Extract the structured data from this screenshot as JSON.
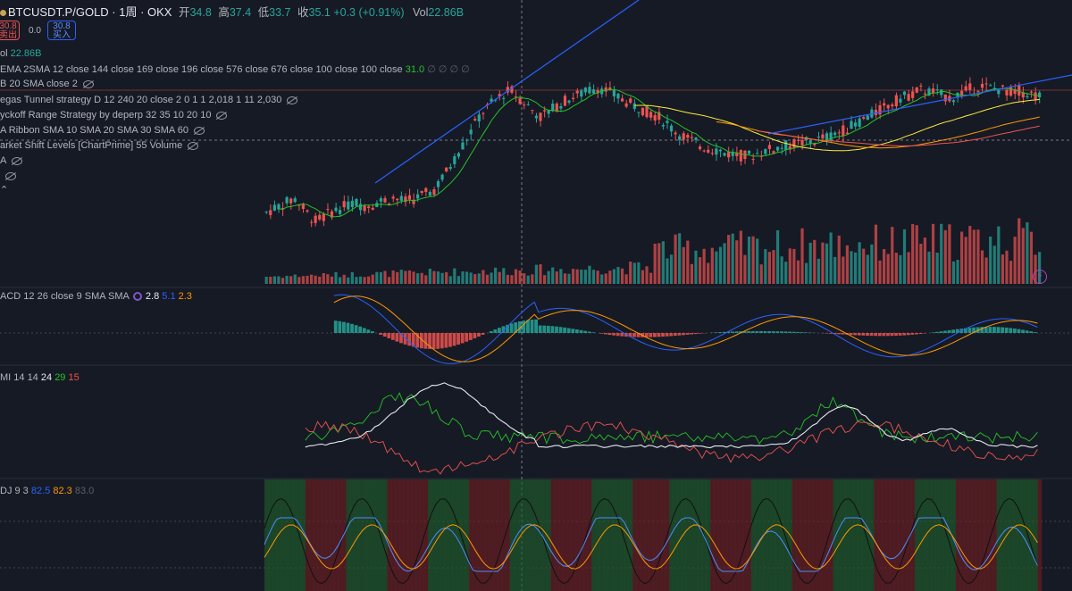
{
  "header": {
    "symbol": "BTCUSDT.P/GOLD · 1周 · OKX",
    "open_label": "开",
    "open": "34.8",
    "high_label": "高",
    "high": "37.4",
    "low_label": "低",
    "low": "33.7",
    "close_label": "收",
    "close": "35.1 +0.3 (+0.91%)",
    "vol_label": "Vol",
    "vol": "22.86B"
  },
  "trade": {
    "sell_price": "30.8",
    "sell_label": "卖出",
    "spread": "0.0",
    "buy_price": "30.8",
    "buy_label": "买入"
  },
  "indicators": {
    "vol_label": "ol",
    "vol_value": "22.86B",
    "ema": "EMA 2SMA 12 close 144 close 169 close 196 close 576 close 676 close 100 close 100 close",
    "ema_value": "31.0",
    "ema_rest": "∅ ∅ ∅ ∅",
    "bb": "B 20 SMA close 2",
    "vegas": "egas Tunnel strategy D 12 240 20 close 2 0 1 1 2,018 1 11 2,030",
    "wyckoff": "yckoff Range Strategy by deperp 32 35 10 20 10",
    "ribbon": "A Ribbon SMA 10 SMA 20 SMA 30 SMA 60",
    "market_shift": "arket Shift Levels [ChartPrime] 55 Volume",
    "ind_a": "A",
    "ind_blank": ""
  },
  "macd": {
    "label": "ACD 12 26 close 9 SMA SMA",
    "v1": "2.8",
    "v2": "5.1",
    "v3": "2.3"
  },
  "dmi": {
    "label": "MI 14 14",
    "v1": "24",
    "v2": "29",
    "v3": "15"
  },
  "kdj": {
    "label": "DJ 9 3",
    "v1": "82.5",
    "v2": "82.3",
    "v3": "83.0"
  },
  "colors": {
    "up": "#26a69a",
    "down": "#ef5350",
    "blue": "#2962ff",
    "orange": "#ff9800",
    "bg": "#161a25"
  },
  "chart_data": {
    "type": "line",
    "candles": [
      32.1,
      32.8,
      33.4,
      34.0,
      32.2,
      30.9,
      31.6,
      32.4,
      32.9,
      33.5,
      33.0,
      33.3,
      33.8,
      34.1,
      33.6,
      33.9,
      34.5,
      35.0,
      36.8,
      38.9,
      41.2,
      43.5,
      45.8,
      47.0,
      48.2,
      48.9,
      47.6,
      46.4,
      45.2,
      46.1,
      47.0,
      47.8,
      48.3,
      48.9,
      49.3,
      48.6,
      47.9,
      47.1,
      46.5,
      45.9,
      45.3,
      44.2,
      43.0,
      42.3,
      41.5,
      41.0,
      40.7,
      40.2,
      40.0,
      39.8,
      40.1,
      40.6,
      40.9,
      41.2,
      41.5,
      41.7,
      41.9,
      42.3,
      42.8,
      43.4,
      44.1,
      44.9,
      45.6,
      46.4,
      47.2,
      47.9,
      48.4,
      49.0,
      48.6,
      48.2,
      47.8,
      48.5,
      49.1,
      49.5,
      49.2,
      49.0,
      48.7,
      48.8,
      48.4,
      48.1
    ]
  }
}
